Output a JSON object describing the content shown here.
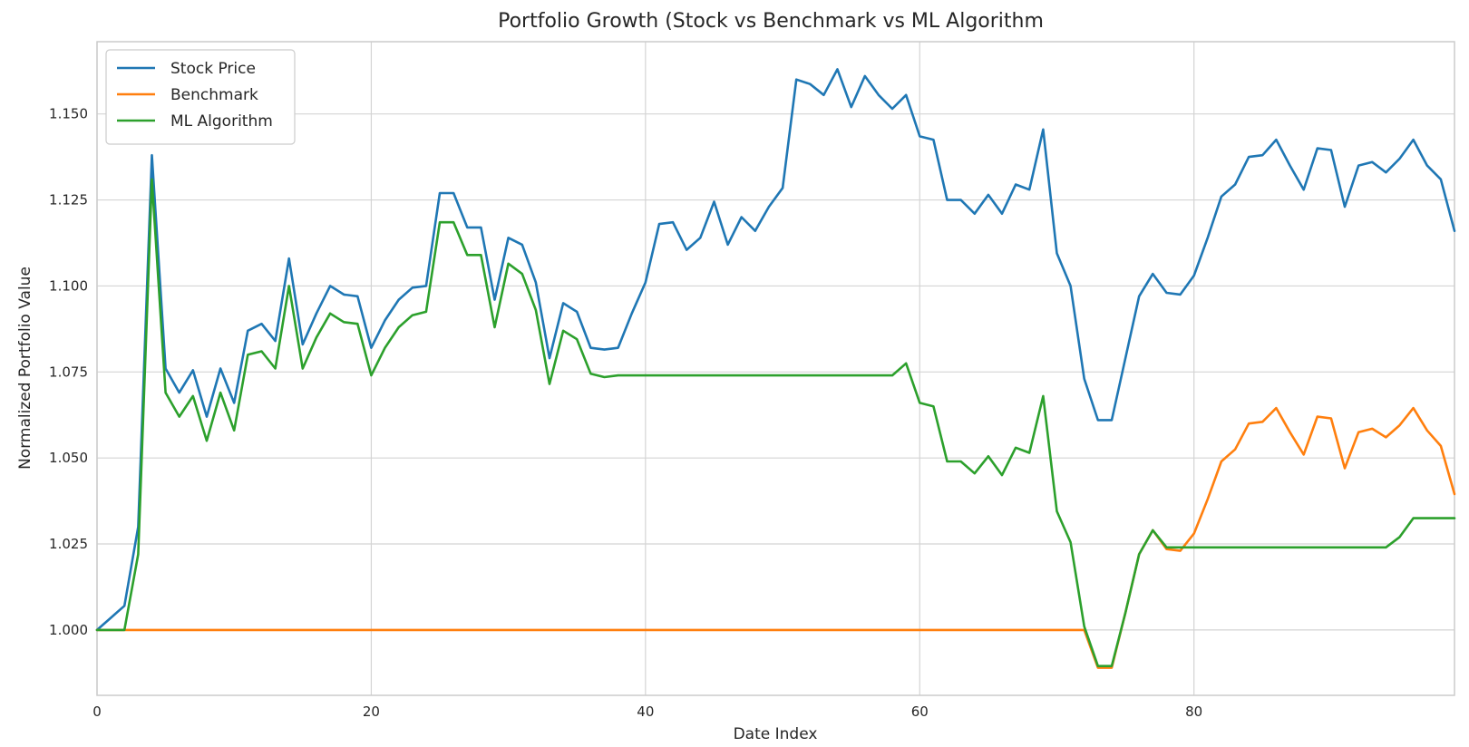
{
  "chart_data": {
    "type": "line",
    "title": "Portfolio Growth (Stock vs Benchmark vs ML Algorithm",
    "xlabel": "Date Index",
    "ylabel": "Normalized Portfolio Value",
    "xlim": [
      0,
      99
    ],
    "ylim": [
      0.981,
      1.171
    ],
    "xticks": [
      0,
      20,
      40,
      60,
      80
    ],
    "yticks": [
      1.0,
      1.025,
      1.05,
      1.075,
      1.1,
      1.125,
      1.15
    ],
    "ytick_labels": [
      "1.000",
      "1.025",
      "1.050",
      "1.075",
      "1.100",
      "1.125",
      "1.150"
    ],
    "grid": true,
    "legend_position": "top-left",
    "series": [
      {
        "name": "Stock Price",
        "color": "#1f77b4",
        "values": [
          1.0,
          1.0035,
          1.007,
          1.03,
          1.138,
          1.076,
          1.069,
          1.0755,
          1.062,
          1.076,
          1.066,
          1.087,
          1.089,
          1.084,
          1.108,
          1.083,
          1.092,
          1.1,
          1.0975,
          1.097,
          1.082,
          1.09,
          1.096,
          1.0995,
          1.1,
          1.127,
          1.127,
          1.117,
          1.117,
          1.096,
          1.114,
          1.112,
          1.101,
          1.079,
          1.095,
          1.0925,
          1.082,
          1.0815,
          1.082,
          1.092,
          1.101,
          1.118,
          1.1185,
          1.1105,
          1.114,
          1.1245,
          1.112,
          1.12,
          1.116,
          1.123,
          1.1285,
          1.16,
          1.1587,
          1.1555,
          1.163,
          1.152,
          1.161,
          1.1555,
          1.1515,
          1.1555,
          1.1435,
          1.1425,
          1.125,
          1.125,
          1.121,
          1.1265,
          1.121,
          1.1295,
          1.128,
          1.1455,
          1.1095,
          1.1,
          1.073,
          1.061,
          1.061,
          1.079,
          1.097,
          1.1035,
          1.098,
          1.0975,
          1.103,
          1.114,
          1.126,
          1.1295,
          1.1375,
          1.138,
          1.1425,
          1.135,
          1.128,
          1.14,
          1.1395,
          1.123,
          1.135,
          1.136,
          1.133,
          1.137,
          1.1425,
          1.135,
          1.131,
          1.116
        ]
      },
      {
        "name": "Benchmark",
        "color": "#ff7f0e",
        "values": [
          1.0,
          1.0,
          1.0,
          1.0,
          1.0,
          1.0,
          1.0,
          1.0,
          1.0,
          1.0,
          1.0,
          1.0,
          1.0,
          1.0,
          1.0,
          1.0,
          1.0,
          1.0,
          1.0,
          1.0,
          1.0,
          1.0,
          1.0,
          1.0,
          1.0,
          1.0,
          1.0,
          1.0,
          1.0,
          1.0,
          1.0,
          1.0,
          1.0,
          1.0,
          1.0,
          1.0,
          1.0,
          1.0,
          1.0,
          1.0,
          1.0,
          1.0,
          1.0,
          1.0,
          1.0,
          1.0,
          1.0,
          1.0,
          1.0,
          1.0,
          1.0,
          1.0,
          1.0,
          1.0,
          1.0,
          1.0,
          1.0,
          1.0,
          1.0,
          1.0,
          1.0,
          1.0,
          1.0,
          1.0,
          1.0,
          1.0,
          1.0,
          1.0,
          1.0,
          1.0,
          1.0,
          1.0,
          1.0,
          0.989,
          0.989,
          1.005,
          1.022,
          1.029,
          1.0235,
          1.023,
          1.028,
          1.038,
          1.049,
          1.0525,
          1.06,
          1.0605,
          1.0645,
          1.0575,
          1.051,
          1.062,
          1.0615,
          1.047,
          1.0575,
          1.0585,
          1.056,
          1.0595,
          1.0645,
          1.058,
          1.0535,
          1.0395
        ]
      },
      {
        "name": "ML Algorithm",
        "color": "#2ca02c",
        "values": [
          1.0,
          1.0,
          1.0,
          1.022,
          1.131,
          1.069,
          1.062,
          1.068,
          1.055,
          1.069,
          1.058,
          1.08,
          1.081,
          1.076,
          1.1,
          1.076,
          1.085,
          1.092,
          1.0895,
          1.089,
          1.074,
          1.082,
          1.088,
          1.0915,
          1.0925,
          1.1185,
          1.1185,
          1.109,
          1.109,
          1.088,
          1.1065,
          1.1035,
          1.093,
          1.0715,
          1.087,
          1.0845,
          1.0745,
          1.0735,
          1.074,
          1.074,
          1.074,
          1.074,
          1.074,
          1.074,
          1.074,
          1.074,
          1.074,
          1.074,
          1.074,
          1.074,
          1.074,
          1.074,
          1.074,
          1.074,
          1.074,
          1.074,
          1.074,
          1.074,
          1.074,
          1.0775,
          1.066,
          1.065,
          1.049,
          1.049,
          1.0455,
          1.0505,
          1.045,
          1.053,
          1.0515,
          1.068,
          1.0345,
          1.0255,
          1.001,
          0.9895,
          0.9895,
          1.005,
          1.022,
          1.029,
          1.024,
          1.024,
          1.024,
          1.024,
          1.024,
          1.024,
          1.024,
          1.024,
          1.024,
          1.024,
          1.024,
          1.024,
          1.024,
          1.024,
          1.024,
          1.024,
          1.024,
          1.027,
          1.0325,
          1.0325,
          1.0325,
          1.0325
        ]
      }
    ]
  }
}
